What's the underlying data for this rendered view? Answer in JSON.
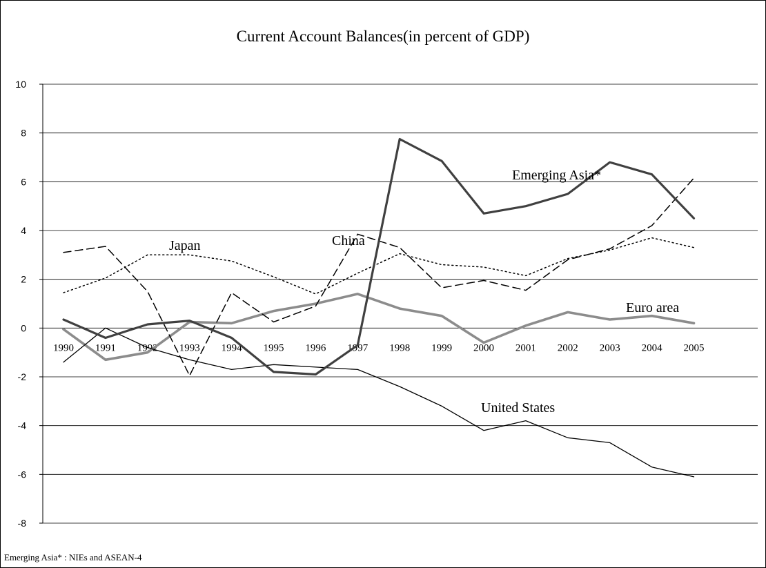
{
  "chart_data": {
    "type": "line",
    "title": "Current Account Balances(in percent of GDP)",
    "xlabel": "",
    "ylabel": "",
    "ylim": [
      -8,
      10
    ],
    "y_ticks": [
      "10",
      "8",
      "6",
      "4",
      "2",
      "0",
      "-2",
      "-4",
      "-6",
      "-8"
    ],
    "grid": "horizontal",
    "categories": [
      "1990",
      "1991",
      "1992",
      "1993",
      "1994",
      "1995",
      "1996",
      "1997",
      "1998",
      "1999",
      "2000",
      "2001",
      "2002",
      "2003",
      "2004",
      "2005"
    ],
    "series": [
      {
        "name": "Emerging Asia*",
        "style": "solid-thick",
        "color": "#404040",
        "values": [
          0.35,
          -0.4,
          0.15,
          0.3,
          -0.4,
          -1.8,
          -1.9,
          -0.7,
          7.75,
          6.85,
          4.7,
          5.0,
          5.5,
          6.8,
          6.3,
          4.5
        ]
      },
      {
        "name": "China",
        "style": "dashed",
        "color": "#000000",
        "values": [
          3.1,
          3.35,
          1.5,
          -1.95,
          1.45,
          0.25,
          0.9,
          3.85,
          3.3,
          1.65,
          1.95,
          1.55,
          2.8,
          3.25,
          4.2,
          6.15
        ]
      },
      {
        "name": "Japan",
        "style": "dotted",
        "color": "#000000",
        "values": [
          1.45,
          2.05,
          3.0,
          3.0,
          2.75,
          2.1,
          1.4,
          2.25,
          3.05,
          2.6,
          2.5,
          2.15,
          2.85,
          3.2,
          3.7,
          3.3
        ]
      },
      {
        "name": "Euro area",
        "style": "solid-gray",
        "color": "#8c8c8c",
        "values": [
          -0.05,
          -1.3,
          -1.0,
          0.25,
          0.2,
          0.7,
          1.0,
          1.4,
          0.8,
          0.5,
          -0.6,
          0.1,
          0.65,
          0.35,
          0.5,
          0.2
        ]
      },
      {
        "name": "United States",
        "style": "solid-thin",
        "color": "#000000",
        "values": [
          -1.4,
          0.0,
          -0.8,
          -1.3,
          -1.7,
          -1.5,
          -1.6,
          -1.7,
          -2.4,
          -3.2,
          -4.2,
          -3.8,
          -4.5,
          -4.7,
          -5.7,
          -6.1
        ]
      }
    ]
  },
  "footnote": "Emerging Asia* : NIEs and  ASEAN-4"
}
